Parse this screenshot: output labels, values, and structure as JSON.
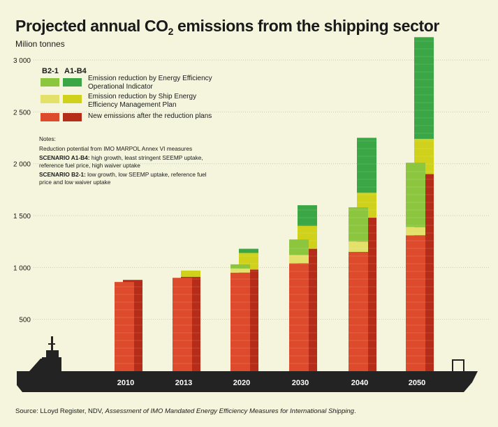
{
  "title": {
    "main": "Projected annual CO",
    "subscript": "2",
    "rest": " emissions from the shipping sector"
  },
  "unit_label": "Milion tonnes",
  "legend": {
    "header_b21": "B2-1",
    "header_a1b4": "A1-B4",
    "items": [
      {
        "label": "Emission reduction by Energy Efficiency Operational Indicator",
        "color_b21": "#8cc63f",
        "color_a1b4": "#3aa645"
      },
      {
        "label": "Emission reduction by Ship Energy Efficiency Management Plan",
        "color_b21": "#e3e16a",
        "color_a1b4": "#cfd11a"
      },
      {
        "label": "New emissions after the reduction plans",
        "color_b21": "#de4b2c",
        "color_a1b4": "#b52d19"
      }
    ]
  },
  "notes": {
    "heading": "Notes:",
    "line1": "Reduction potential from IMO MARPOL Annex VI  measures",
    "a1b4_label": "SCENARIO A1-B4:",
    "a1b4_text": " high growth, least stringent SEEMP uptake, reference fuel price, high waiver uptake",
    "b21_label": "SCENARIO B2-1:",
    "b21_text": " low growth, low SEEMP uptake, reference fuel price and low waiver uptake"
  },
  "source": {
    "prefix": "Source: LLoyd Register, NDV, ",
    "title": "Assessment of IMO Mandated Energy Efficiency Measures for International Shipping",
    "suffix": "."
  },
  "chart_data": {
    "type": "bar",
    "stacked": true,
    "title": "Projected annual CO2 emissions from the shipping sector",
    "ylabel": "Milion tonnes",
    "ylim": [
      0,
      3200
    ],
    "yticks": [
      500,
      1000,
      1500,
      2000,
      2500,
      3000
    ],
    "ytick_labels": [
      "500",
      "1 000",
      "1 500",
      "2 000",
      "2 500",
      "3 000"
    ],
    "grid": true,
    "categories": [
      "2010",
      "2013",
      "2020",
      "2030",
      "2040",
      "2050"
    ],
    "series": [
      {
        "name": "B2-1",
        "scenario": "B2-1",
        "new_emissions": [
          860,
          900,
          950,
          1040,
          1150,
          1310
        ],
        "seemp_reduction": [
          0,
          0,
          40,
          80,
          100,
          80
        ],
        "eeoi_reduction": [
          0,
          0,
          40,
          150,
          330,
          620
        ]
      },
      {
        "name": "A1-B4",
        "scenario": "A1-B4",
        "new_emissions": [
          880,
          910,
          980,
          1180,
          1480,
          1900
        ],
        "seemp_reduction": [
          0,
          60,
          160,
          220,
          240,
          340
        ],
        "eeoi_reduction": [
          0,
          0,
          40,
          200,
          530,
          980
        ]
      }
    ]
  }
}
